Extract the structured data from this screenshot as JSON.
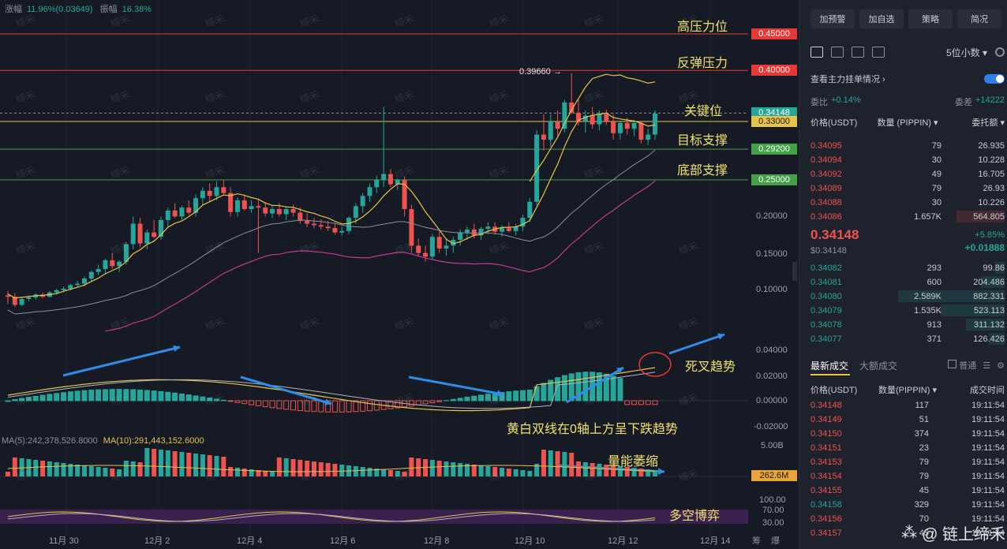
{
  "top_stats": {
    "label1": "涨幅",
    "value1": "11.96%(0.03649)",
    "label2": "振幅",
    "value2": "16.38%"
  },
  "annotations": {
    "high_resistance": "高压力位",
    "rebound_resistance": "反弹压力",
    "key_level": "关键位",
    "target_support": "目标支撑",
    "bottom_support": "底部支撑",
    "death_cross": "死叉趋势",
    "macd_note": "黄白双线在0轴上方呈下跌趋势",
    "volume_note": "量能萎缩",
    "bull_bear": "多空博弈",
    "peak_label": "0.39660"
  },
  "price_tags": [
    {
      "label": "0.45000",
      "color": "#e53935"
    },
    {
      "label": "0.40000",
      "color": "#e53935"
    },
    {
      "label": "0.34148",
      "color": "#26a69a"
    },
    {
      "label": "0.33000",
      "color": "#e8c34a"
    },
    {
      "label": "0.29200",
      "color": "#43a047"
    },
    {
      "label": "0.25000",
      "color": "#43a047"
    }
  ],
  "axis_labels": [
    "0.20000",
    "0.15000",
    "0.10000"
  ],
  "macd_axis": [
    "0.04000",
    "0.02000",
    "0.00000",
    "-0.02000"
  ],
  "vol_axis": {
    "top": "5.00B",
    "tag": "262.6M"
  },
  "rsi_axis": [
    "100.00",
    "70.00",
    "30.00"
  ],
  "vol_legend": {
    "ma5": "MA(5):242,378,526.8000",
    "ma10": "MA(10):291,443,152.6000"
  },
  "x_labels": [
    "11月 30",
    "12月 2",
    "12月 4",
    "12月 6",
    "12月 8",
    "12月 10",
    "12月 12",
    "12月 14"
  ],
  "bottom_right": {
    "glyphs": "筹",
    "glyphs2": "爆"
  },
  "watermark": {
    "text": "缔禾",
    "brand": "@ 链上缔禾"
  },
  "panel": {
    "buttons": [
      "加预警",
      "加自选",
      "策略",
      "简况"
    ],
    "decimal": "5位小数",
    "check_label": "查看主力挂单情况",
    "ratio": {
      "label": "委比",
      "value": "+0.14%",
      "label2": "委差",
      "value2": "+14222"
    },
    "headers": [
      "价格(USDT)",
      "数量 (PIPPIN)",
      "委托额"
    ],
    "asks": [
      {
        "p": "0.34095",
        "q": "79",
        "t": "26.935",
        "w": 0
      },
      {
        "p": "0.34094",
        "q": "30",
        "t": "10.228",
        "w": 0
      },
      {
        "p": "0.34092",
        "q": "49",
        "t": "16.705",
        "w": 0
      },
      {
        "p": "0.34089",
        "q": "79",
        "t": "26.93",
        "w": 0
      },
      {
        "p": "0.34088",
        "q": "30",
        "t": "10.226",
        "w": 0
      },
      {
        "p": "0.34086",
        "q": "1.657K",
        "t": "564.805",
        "w": 0.25
      }
    ],
    "mid": {
      "price": "0.34148",
      "sub": "$0.34148",
      "pct": "+5.85%",
      "chg": "+0.01888"
    },
    "bids": [
      {
        "p": "0.34082",
        "q": "293",
        "t": "99.86",
        "w": 0.05
      },
      {
        "p": "0.34081",
        "q": "600",
        "t": "204.486",
        "w": 0.12
      },
      {
        "p": "0.34080",
        "q": "2.589K",
        "t": "882.331",
        "w": 0.55
      },
      {
        "p": "0.34079",
        "q": "1.535K",
        "t": "523.113",
        "w": 0.33
      },
      {
        "p": "0.34078",
        "q": "913",
        "t": "311.132",
        "w": 0.2
      },
      {
        "p": "0.34077",
        "q": "371",
        "t": "126.426",
        "w": 0.08
      }
    ],
    "trades_tabs": {
      "active": "最新成交",
      "inactive": "大额成交",
      "opt": "普通"
    },
    "trade_headers": [
      "价格(USDT)",
      "数量(PIPPIN)",
      "成交时间"
    ],
    "trades": [
      {
        "p": "0.34148",
        "q": "117",
        "t": "19:11:54",
        "c": "red"
      },
      {
        "p": "0.34149",
        "q": "51",
        "t": "19:11:54",
        "c": "red"
      },
      {
        "p": "0.34150",
        "q": "374",
        "t": "19:11:54",
        "c": "red"
      },
      {
        "p": "0.34151",
        "q": "23",
        "t": "19:11:54",
        "c": "red"
      },
      {
        "p": "0.34153",
        "q": "79",
        "t": "19:11:54",
        "c": "red"
      },
      {
        "p": "0.34154",
        "q": "79",
        "t": "19:11:54",
        "c": "red"
      },
      {
        "p": "0.34155",
        "q": "45",
        "t": "19:11:54",
        "c": "red"
      },
      {
        "p": "0.34158",
        "q": "329",
        "t": "19:11:54",
        "c": "green"
      },
      {
        "p": "0.34156",
        "q": "70",
        "t": "19:11:54",
        "c": "red"
      },
      {
        "p": "0.34157",
        "q": "45",
        "t": "19:11:54",
        "c": "red"
      }
    ]
  },
  "chart_data": {
    "type": "candlestick",
    "levels": [
      0.45,
      0.4,
      0.34148,
      0.33,
      0.292,
      0.25
    ],
    "candles": [
      [
        0.092,
        0.098,
        0.08,
        0.09
      ],
      [
        0.09,
        0.095,
        0.076,
        0.079
      ],
      [
        0.079,
        0.089,
        0.077,
        0.087
      ],
      [
        0.087,
        0.092,
        0.084,
        0.089
      ],
      [
        0.089,
        0.095,
        0.086,
        0.093
      ],
      [
        0.093,
        0.096,
        0.088,
        0.09
      ],
      [
        0.09,
        0.098,
        0.089,
        0.096
      ],
      [
        0.096,
        0.101,
        0.093,
        0.099
      ],
      [
        0.099,
        0.104,
        0.096,
        0.101
      ],
      [
        0.101,
        0.108,
        0.099,
        0.106
      ],
      [
        0.106,
        0.112,
        0.103,
        0.108
      ],
      [
        0.108,
        0.118,
        0.104,
        0.115
      ],
      [
        0.115,
        0.126,
        0.11,
        0.124
      ],
      [
        0.124,
        0.134,
        0.12,
        0.128
      ],
      [
        0.128,
        0.142,
        0.122,
        0.14
      ],
      [
        0.14,
        0.15,
        0.128,
        0.132
      ],
      [
        0.132,
        0.14,
        0.124,
        0.138
      ],
      [
        0.138,
        0.165,
        0.134,
        0.162
      ],
      [
        0.162,
        0.2,
        0.155,
        0.19
      ],
      [
        0.19,
        0.198,
        0.158,
        0.163
      ],
      [
        0.163,
        0.182,
        0.155,
        0.178
      ],
      [
        0.178,
        0.195,
        0.17,
        0.172
      ],
      [
        0.172,
        0.2,
        0.168,
        0.195
      ],
      [
        0.195,
        0.212,
        0.185,
        0.208
      ],
      [
        0.208,
        0.218,
        0.198,
        0.2
      ],
      [
        0.2,
        0.215,
        0.195,
        0.212
      ],
      [
        0.212,
        0.222,
        0.202,
        0.205
      ],
      [
        0.205,
        0.23,
        0.2,
        0.225
      ],
      [
        0.225,
        0.24,
        0.215,
        0.235
      ],
      [
        0.235,
        0.245,
        0.22,
        0.228
      ],
      [
        0.228,
        0.248,
        0.222,
        0.24
      ],
      [
        0.24,
        0.25,
        0.23,
        0.232
      ],
      [
        0.232,
        0.24,
        0.2,
        0.206
      ],
      [
        0.206,
        0.226,
        0.2,
        0.222
      ],
      [
        0.222,
        0.23,
        0.208,
        0.21
      ],
      [
        0.21,
        0.222,
        0.205,
        0.214
      ],
      [
        0.214,
        0.224,
        0.15,
        0.212
      ],
      [
        0.212,
        0.22,
        0.2,
        0.204
      ],
      [
        0.204,
        0.215,
        0.198,
        0.21
      ],
      [
        0.21,
        0.218,
        0.2,
        0.203
      ],
      [
        0.203,
        0.214,
        0.195,
        0.21
      ],
      [
        0.21,
        0.216,
        0.2,
        0.205
      ],
      [
        0.205,
        0.212,
        0.19,
        0.194
      ],
      [
        0.194,
        0.204,
        0.185,
        0.19
      ],
      [
        0.19,
        0.198,
        0.184,
        0.188
      ],
      [
        0.188,
        0.196,
        0.182,
        0.186
      ],
      [
        0.186,
        0.194,
        0.18,
        0.184
      ],
      [
        0.184,
        0.19,
        0.175,
        0.178
      ],
      [
        0.178,
        0.186,
        0.174,
        0.18
      ],
      [
        0.18,
        0.2,
        0.176,
        0.198
      ],
      [
        0.198,
        0.218,
        0.19,
        0.214
      ],
      [
        0.214,
        0.232,
        0.205,
        0.228
      ],
      [
        0.228,
        0.245,
        0.22,
        0.24
      ],
      [
        0.24,
        0.256,
        0.232,
        0.25
      ],
      [
        0.25,
        0.35,
        0.24,
        0.258
      ],
      [
        0.258,
        0.265,
        0.24,
        0.244
      ],
      [
        0.244,
        0.252,
        0.236,
        0.25
      ],
      [
        0.25,
        0.255,
        0.2,
        0.21
      ],
      [
        0.21,
        0.216,
        0.15,
        0.16
      ],
      [
        0.16,
        0.17,
        0.145,
        0.15
      ],
      [
        0.15,
        0.16,
        0.138,
        0.145
      ],
      [
        0.145,
        0.176,
        0.14,
        0.172
      ],
      [
        0.172,
        0.18,
        0.15,
        0.156
      ],
      [
        0.156,
        0.168,
        0.146,
        0.16
      ],
      [
        0.16,
        0.172,
        0.15,
        0.168
      ],
      [
        0.168,
        0.182,
        0.16,
        0.178
      ],
      [
        0.178,
        0.186,
        0.168,
        0.182
      ],
      [
        0.182,
        0.19,
        0.17,
        0.174
      ],
      [
        0.174,
        0.186,
        0.168,
        0.183
      ],
      [
        0.183,
        0.192,
        0.176,
        0.186
      ],
      [
        0.186,
        0.192,
        0.175,
        0.179
      ],
      [
        0.179,
        0.188,
        0.172,
        0.184
      ],
      [
        0.184,
        0.192,
        0.178,
        0.18
      ],
      [
        0.18,
        0.19,
        0.174,
        0.186
      ],
      [
        0.186,
        0.202,
        0.18,
        0.198
      ],
      [
        0.198,
        0.225,
        0.192,
        0.22
      ],
      [
        0.22,
        0.318,
        0.215,
        0.312
      ],
      [
        0.312,
        0.34,
        0.29,
        0.305
      ],
      [
        0.305,
        0.34,
        0.295,
        0.33
      ],
      [
        0.33,
        0.345,
        0.31,
        0.32
      ],
      [
        0.32,
        0.36,
        0.315,
        0.356
      ],
      [
        0.356,
        0.396,
        0.34,
        0.342
      ],
      [
        0.342,
        0.36,
        0.325,
        0.33
      ],
      [
        0.33,
        0.345,
        0.315,
        0.338
      ],
      [
        0.338,
        0.35,
        0.32,
        0.326
      ],
      [
        0.326,
        0.345,
        0.318,
        0.34
      ],
      [
        0.34,
        0.346,
        0.325,
        0.33
      ],
      [
        0.33,
        0.34,
        0.305,
        0.314
      ],
      [
        0.314,
        0.33,
        0.305,
        0.328
      ],
      [
        0.328,
        0.335,
        0.312,
        0.32
      ],
      [
        0.32,
        0.332,
        0.31,
        0.328
      ],
      [
        0.328,
        0.33,
        0.3,
        0.305
      ],
      [
        0.305,
        0.32,
        0.298,
        0.312
      ],
      [
        0.312,
        0.345,
        0.305,
        0.341
      ]
    ]
  }
}
